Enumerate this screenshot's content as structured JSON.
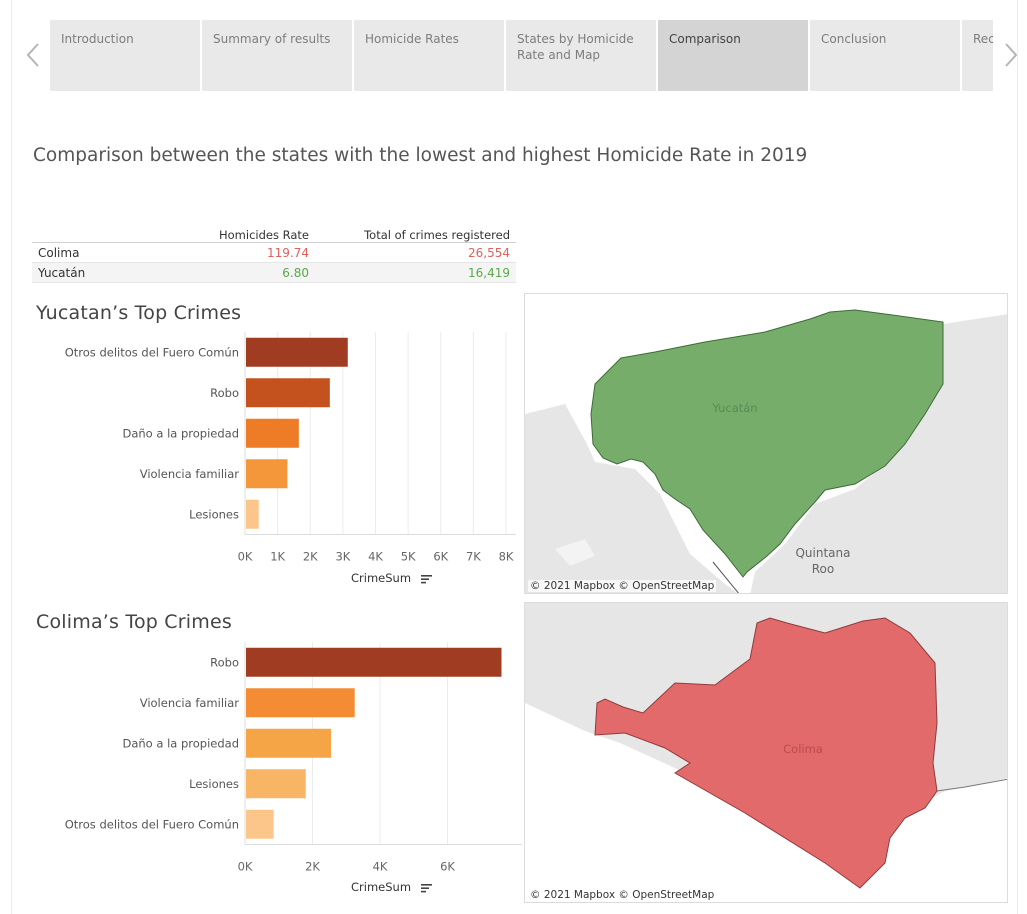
{
  "nav": {
    "tabs": [
      {
        "label": "Introduction"
      },
      {
        "label": "Summary of results"
      },
      {
        "label": "Homicide Rates"
      },
      {
        "label": "States by Homicide Rate and Map"
      },
      {
        "label": "Comparison"
      },
      {
        "label": "Conclusion"
      },
      {
        "label": "Rec"
      }
    ],
    "active_tab": "Comparison"
  },
  "page_title": "Comparison between the states with the lowest and  highest Homicide Rate in 2019",
  "summary_table": {
    "headers": {
      "rate": "Homicides Rate",
      "total": "Total of crimes registered"
    },
    "rows": [
      {
        "state": "Colima",
        "rate": "119.74",
        "total": "26,554"
      },
      {
        "state": "Yucatán",
        "rate": "6.80",
        "total": "16,419"
      }
    ],
    "colors": {
      "high": "#e0605e",
      "low": "#5ea54d"
    }
  },
  "chart_data": [
    {
      "type": "bar",
      "orientation": "horizontal",
      "title": "Yucatan’s Top Crimes",
      "xlabel": "CrimeSum",
      "categories": [
        "Otros delitos del Fuero Común",
        "Robo",
        "Daño a la propiedad",
        "Violencia familiar",
        "Lesiones"
      ],
      "values": [
        3150,
        2600,
        1650,
        1300,
        420
      ],
      "xlim": [
        0,
        8000
      ],
      "xticks": [
        0,
        1000,
        2000,
        3000,
        4000,
        5000,
        6000,
        7000,
        8000
      ],
      "xtick_labels": [
        "0K",
        "1K",
        "2K",
        "3K",
        "4K",
        "5K",
        "6K",
        "7K",
        "8K"
      ],
      "gridlines": true,
      "colors": [
        "#a03c22",
        "#c4521f",
        "#ee7b25",
        "#f4963a",
        "#fcc58a"
      ]
    },
    {
      "type": "bar",
      "orientation": "horizontal",
      "title": "Colima’s Top Crimes",
      "xlabel": "CrimeSum",
      "categories": [
        "Robo",
        "Violencia familiar",
        "Daño a la propiedad",
        "Lesiones",
        "Otros delitos del Fuero Común"
      ],
      "values": [
        7600,
        3250,
        2550,
        1800,
        850
      ],
      "xlim": [
        0,
        8000
      ],
      "xticks": [
        0,
        2000,
        4000,
        6000
      ],
      "xtick_labels": [
        "0K",
        "2K",
        "4K",
        "6K"
      ],
      "gridlines": true,
      "colors": [
        "#a03c22",
        "#f38c32",
        "#f5a546",
        "#f8b565",
        "#fcc58a"
      ]
    }
  ],
  "maps": {
    "yucatan": {
      "state_label": "Yucatán",
      "neighbor_label": "Quintana\nRoo",
      "fill": "#76ad6b",
      "credit": "© 2021 Mapbox  © OpenStreetMap"
    },
    "colima": {
      "state_label": "Colima",
      "fill": "#e36a6b",
      "credit": "© 2021 Mapbox  © OpenStreetMap"
    }
  }
}
